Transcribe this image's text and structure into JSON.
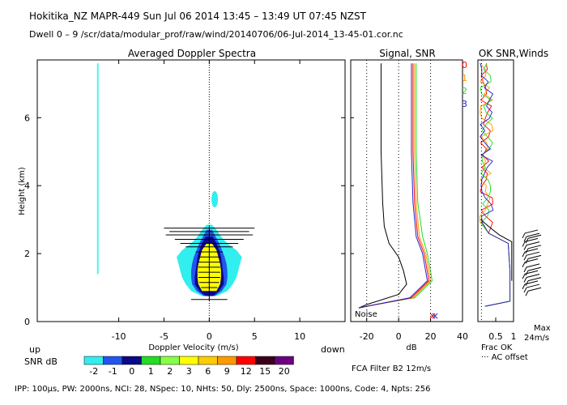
{
  "header": {
    "line1": "Hokitika_NZ   MAPR-449   Sun Jul 06 2014 13:45 – 13:49 UT 07:45 NZST",
    "line2": "Dwell   0 –  9    /scr/data/modular_prof/raw/wind/20140706/06-Jul-2014_13-45-01.cor.nc"
  },
  "footer": {
    "params": "IPP: 100μs,  PW: 2000ns,  NCI:  28,  NSpec: 10,  NHts: 50,  Dly: 2500ns,   Space: 1000ns,   Code: 4,   Npts: 256",
    "filter": "FCA Filter B2 12m/s"
  },
  "colors": {
    "cyan": "#33eeee",
    "blue": "#2255ee",
    "navy": "#0a0a88",
    "yellow": "#ffff00",
    "green": "#22dd22",
    "orange": "#ff9900",
    "red": "#ff0000",
    "purple": "#6a0080"
  },
  "chart_data": [
    {
      "type": "heatmap",
      "title": "Averaged Doppler Spectra",
      "xlabel": "Doppler Velocity (m/s)",
      "ylabel": "Height (km)",
      "xlim": [
        -19,
        15
      ],
      "ylim": [
        0,
        7.7
      ],
      "x_ticks": [
        -10,
        -5,
        0,
        5,
        10
      ],
      "y_ticks": [
        0,
        2,
        4,
        6
      ],
      "left_label": "up",
      "right_label": "down",
      "colorbar": {
        "label": "SNR dB",
        "values": [
          -2,
          -1,
          0,
          1,
          2,
          3,
          6,
          9,
          12,
          15,
          20
        ],
        "colors": [
          "#33eeee",
          "#2255ee",
          "#0a0a88",
          "#22dd22",
          "#88ff44",
          "#ffff00",
          "#ffcc00",
          "#ff9900",
          "#ff0000",
          "#3a001a",
          "#6a0080"
        ]
      }
    },
    {
      "type": "line",
      "title": "Signal, SNR",
      "xlabel": "dB",
      "xlim": [
        -30,
        40
      ],
      "x_ticks": [
        -20,
        0,
        20,
        40
      ],
      "annotation": "Noise",
      "series": [
        {
          "color": "#000000",
          "points": [
            [
              -11,
              7.6
            ],
            [
              -11,
              5
            ],
            [
              -10,
              3.5
            ],
            [
              -9,
              2.8
            ],
            [
              -6,
              2.3
            ],
            [
              0,
              1.9
            ],
            [
              3,
              1.5
            ],
            [
              5,
              1.1
            ],
            [
              0,
              0.8
            ],
            [
              -20,
              0.5
            ],
            [
              -25,
              0.4
            ]
          ]
        },
        {
          "color": "#22dd22",
          "points": [
            [
              11,
              7.6
            ],
            [
              11,
              5
            ],
            [
              12,
              3.5
            ],
            [
              15,
              2.5
            ],
            [
              18,
              2
            ],
            [
              21,
              1.2
            ],
            [
              10,
              0.7
            ],
            [
              -20,
              0.45
            ],
            [
              -25,
              0.4
            ]
          ]
        },
        {
          "color": "#ff9900",
          "points": [
            [
              10,
              7.6
            ],
            [
              10,
              5
            ],
            [
              11,
              3.5
            ],
            [
              13,
              2.5
            ],
            [
              17,
              2
            ],
            [
              20,
              1.2
            ],
            [
              9,
              0.7
            ],
            [
              -20,
              0.45
            ],
            [
              -25,
              0.4
            ]
          ]
        },
        {
          "color": "#ff0000",
          "points": [
            [
              9,
              7.6
            ],
            [
              9,
              5
            ],
            [
              10,
              3.5
            ],
            [
              12,
              2.5
            ],
            [
              16,
              2
            ],
            [
              19,
              1.2
            ],
            [
              8,
              0.7
            ],
            [
              -20,
              0.45
            ],
            [
              -25,
              0.4
            ]
          ]
        },
        {
          "color": "#2222cc",
          "points": [
            [
              8,
              7.6
            ],
            [
              8,
              5
            ],
            [
              9,
              3.5
            ],
            [
              11,
              2.5
            ],
            [
              15,
              2
            ],
            [
              18,
              1.2
            ],
            [
              7,
              0.7
            ],
            [
              -20,
              0.45
            ],
            [
              -25,
              0.4
            ]
          ]
        }
      ]
    },
    {
      "type": "line",
      "title": "OK SNR,Winds",
      "xlabel": "Frac OK",
      "xlim": [
        0,
        1
      ],
      "x_ticks": [
        0.5,
        1
      ],
      "note": "AC offset",
      "max_label": "Max",
      "max_value": "24m/s",
      "legend": [
        {
          "label": "0",
          "color": "#ff0000"
        },
        {
          "label": "1",
          "color": "#ff9900"
        },
        {
          "label": "2",
          "color": "#22dd22"
        },
        {
          "label": "3",
          "color": "#2222cc"
        }
      ]
    }
  ]
}
